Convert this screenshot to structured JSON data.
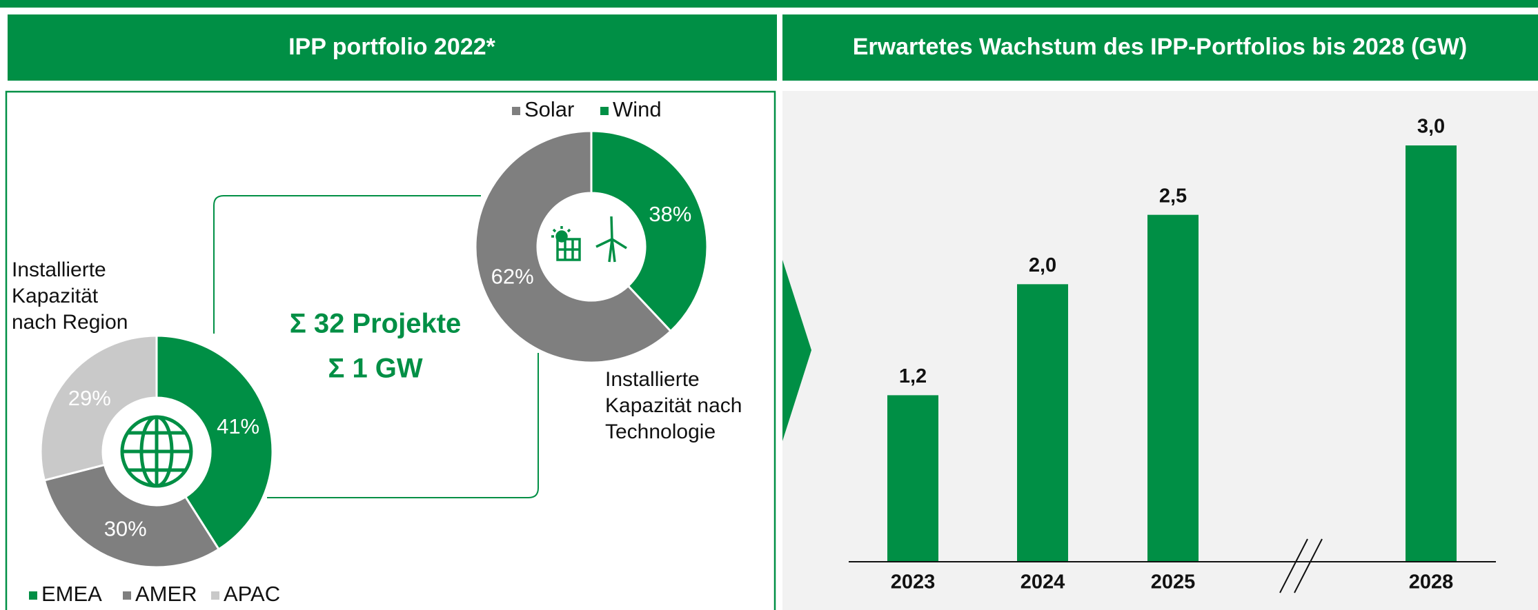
{
  "header_title": "IPP portfolio 2022*",
  "summary": [
    "Σ 32 Projekte",
    "Σ 1 GW"
  ],
  "chart_data": [
    {
      "type": "pie",
      "title": "Installierte Kapazität nach Region",
      "categories": [
        "EMEA",
        "AMER",
        "APAC"
      ],
      "values": [
        41,
        30,
        29
      ],
      "value_labels": [
        "41%",
        "30%",
        "29%"
      ],
      "colors": [
        "#008f45",
        "#7f7f7f",
        "#c9c9c9"
      ]
    },
    {
      "type": "pie",
      "title": "Installierte Kapazität nach Technologie",
      "categories": [
        "Solar",
        "Wind"
      ],
      "values": [
        62,
        38
      ],
      "value_labels": [
        "62%",
        "38%"
      ],
      "colors": [
        "#7f7f7f",
        "#008f45"
      ]
    },
    {
      "type": "bar",
      "title": "Erwartetes Wachstum des IPP-Portfolios bis 2028 (GW)",
      "categories": [
        "2023",
        "2024",
        "2025",
        "2028"
      ],
      "values": [
        1.2,
        2.0,
        2.5,
        3.0
      ],
      "value_labels": [
        "1,2",
        "2,0",
        "2,5",
        "3,0"
      ],
      "color": "#008f45"
    }
  ]
}
